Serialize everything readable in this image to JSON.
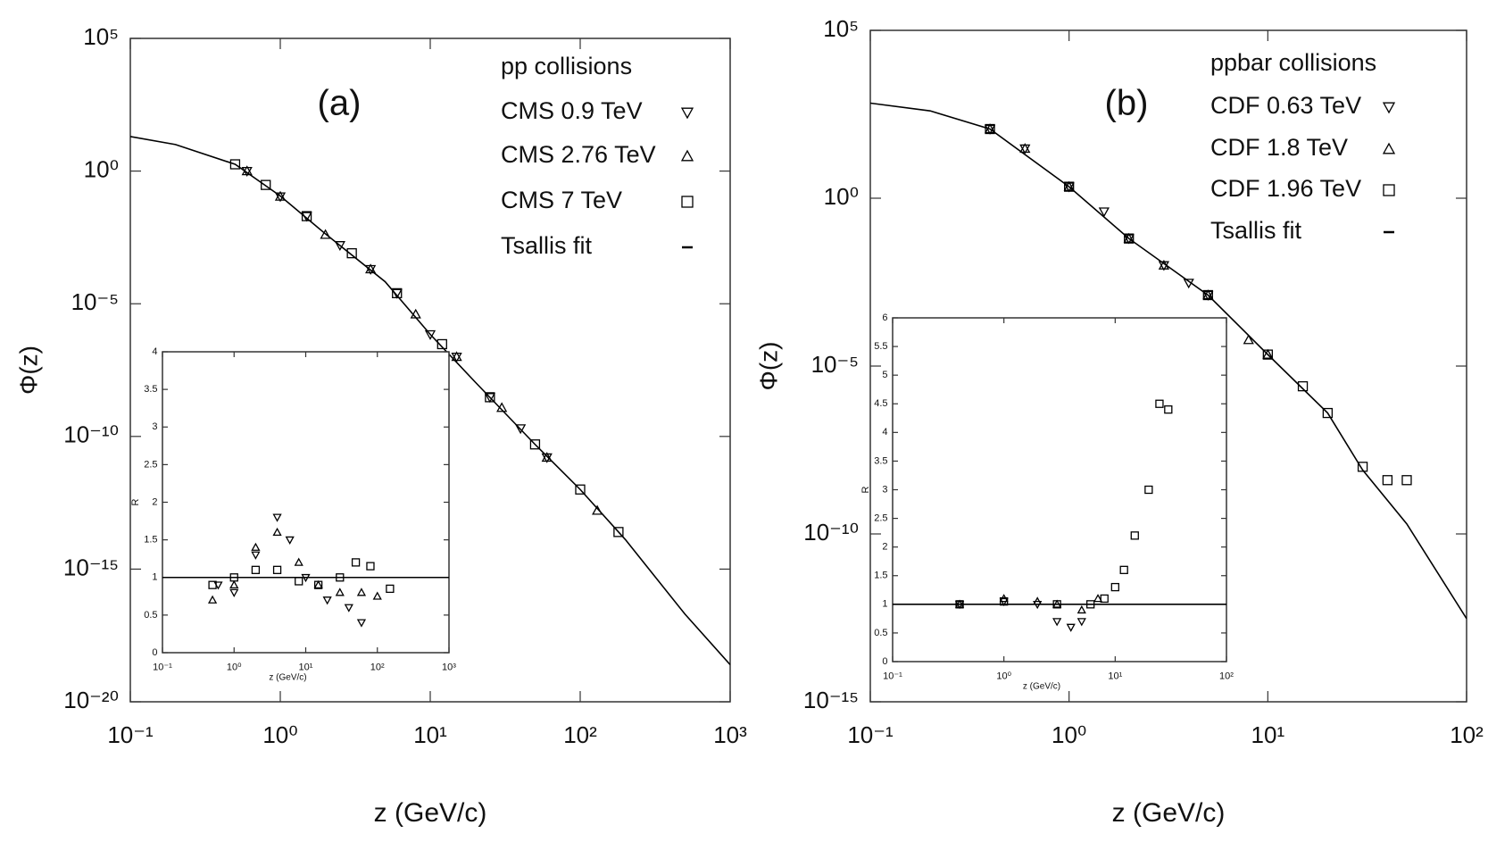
{
  "chart_data": [
    {
      "type": "scatter",
      "panel_label": "(a)",
      "legend_title": "pp collisions",
      "xlabel": "z (GeV/c)",
      "ylabel": "Φ(z)",
      "xscale": "log",
      "yscale": "log",
      "xlim": [
        0.1,
        1000
      ],
      "ylim": [
        1e-20,
        100000
      ],
      "xticks": [
        {
          "value": 0.1,
          "label": "10⁻¹"
        },
        {
          "value": 1,
          "label": "10⁰"
        },
        {
          "value": 10,
          "label": "10¹"
        },
        {
          "value": 100,
          "label": "10²"
        },
        {
          "value": 1000,
          "label": "10³"
        }
      ],
      "yticks": [
        {
          "value": 1e-20,
          "label": "10⁻²⁰"
        },
        {
          "value": 1e-15,
          "label": "10⁻¹⁵"
        },
        {
          "value": 1e-10,
          "label": "10⁻¹⁰"
        },
        {
          "value": 1e-05,
          "label": "10⁻⁵"
        },
        {
          "value": 1,
          "label": "10⁰"
        },
        {
          "value": 100000,
          "label": "10⁵"
        }
      ],
      "series": [
        {
          "name": "CMS 0.9 TeV",
          "marker": "triangle-down",
          "color": "#000000",
          "x": [
            0.6,
            1,
            1.5,
            2.5,
            4,
            6,
            10,
            15,
            25,
            40,
            60
          ],
          "values": [
            1,
            0.11,
            0.02,
            0.0016,
            0.0002,
            2.5e-05,
            7e-07,
            1e-07,
            3e-09,
            2e-10,
            1.6e-11
          ]
        },
        {
          "name": "CMS 2.76 TeV",
          "marker": "triangle-up",
          "color": "#000000",
          "x": [
            0.6,
            1,
            2,
            4,
            8,
            15,
            30,
            60,
            130
          ],
          "values": [
            1,
            0.11,
            0.004,
            0.0002,
            4e-06,
            1e-07,
            1.2e-09,
            1.6e-11,
            1.6e-13
          ]
        },
        {
          "name": "CMS 7 TeV",
          "marker": "square",
          "color": "#000000",
          "x": [
            0.5,
            0.8,
            1.5,
            3,
            6,
            12,
            25,
            50,
            100,
            180
          ],
          "values": [
            1.8,
            0.3,
            0.02,
            0.0008,
            2.5e-05,
            3e-07,
            3e-09,
            5e-11,
            1e-12,
            2.5e-14
          ]
        },
        {
          "name": "Tsallis fit",
          "marker": "line",
          "color": "#000000",
          "x": [
            0.1,
            0.2,
            0.5,
            1,
            2,
            5,
            10,
            20,
            50,
            100,
            200,
            500,
            1000
          ],
          "values": [
            20,
            10,
            1.8,
            0.115,
            0.0043,
            6.8e-05,
            7e-07,
            1.1e-08,
            5e-11,
            1e-12,
            1.3e-14,
            2e-17,
            2.5e-19
          ]
        }
      ]
    },
    {
      "type": "scatter",
      "xlabel": "z (GeV/c)",
      "ylabel": "R",
      "xscale": "log",
      "yscale": "linear",
      "xlim": [
        0.1,
        1000
      ],
      "ylim": [
        0,
        4
      ],
      "xticks": [
        {
          "value": 0.1,
          "label": "10⁻¹"
        },
        {
          "value": 1,
          "label": "10⁰"
        },
        {
          "value": 10,
          "label": "10¹"
        },
        {
          "value": 100,
          "label": "10²"
        },
        {
          "value": 1000,
          "label": "10³"
        }
      ],
      "yticks": [
        0,
        0.5,
        1,
        1.5,
        2,
        2.5,
        3,
        3.5,
        4
      ],
      "series": [
        {
          "marker": "triangle-down",
          "color": "#000000",
          "x": [
            0.6,
            1,
            2,
            4,
            6,
            10,
            20,
            40,
            60
          ],
          "values": [
            0.9,
            0.8,
            1.3,
            1.8,
            1.5,
            1.0,
            0.7,
            0.6,
            0.4
          ]
        },
        {
          "marker": "triangle-up",
          "color": "#000000",
          "x": [
            0.5,
            1,
            2,
            4,
            8,
            15,
            30,
            60,
            100
          ],
          "values": [
            0.7,
            0.9,
            1.4,
            1.6,
            1.2,
            0.9,
            0.8,
            0.8,
            0.75
          ]
        },
        {
          "marker": "square",
          "color": "#000000",
          "x": [
            0.5,
            1,
            2,
            4,
            8,
            15,
            30,
            50,
            80,
            150
          ],
          "values": [
            0.9,
            1.0,
            1.1,
            1.1,
            0.95,
            0.9,
            1.0,
            1.2,
            1.15,
            0.85
          ]
        },
        {
          "marker": "line",
          "color": "#000000",
          "x": [
            0.1,
            1000
          ],
          "values": [
            1,
            1
          ]
        }
      ]
    },
    {
      "type": "scatter",
      "panel_label": "(b)",
      "legend_title": "ppbar collisions",
      "xlabel": "z (GeV/c)",
      "ylabel": "Φ(z)",
      "xscale": "log",
      "yscale": "log",
      "xlim": [
        0.1,
        100
      ],
      "ylim": [
        1e-15,
        100000
      ],
      "xticks": [
        {
          "value": 0.1,
          "label": "10⁻¹"
        },
        {
          "value": 1,
          "label": "10⁰"
        },
        {
          "value": 10,
          "label": "10¹"
        },
        {
          "value": 100,
          "label": "10²"
        }
      ],
      "yticks": [
        {
          "value": 1e-15,
          "label": "10⁻¹⁵"
        },
        {
          "value": 1e-10,
          "label": "10⁻¹⁰"
        },
        {
          "value": 1e-05,
          "label": "10⁻⁵"
        },
        {
          "value": 1,
          "label": "10⁰"
        },
        {
          "value": 100000,
          "label": "10⁵"
        }
      ],
      "series": [
        {
          "name": "CDF 0.63 TeV",
          "marker": "triangle-down",
          "color": "#000000",
          "x": [
            0.4,
            0.6,
            1,
            1.5,
            2,
            3,
            4,
            5
          ],
          "values": [
            115,
            30,
            2.2,
            0.4,
            0.063,
            0.01,
            0.003,
            0.0013
          ]
        },
        {
          "name": "CDF 1.8 TeV",
          "marker": "triangle-up",
          "color": "#000000",
          "x": [
            0.4,
            0.6,
            1,
            2,
            3,
            5,
            8,
            10
          ],
          "values": [
            115,
            30,
            2.2,
            0.063,
            0.01,
            0.0013,
            6e-05,
            2.2e-05
          ]
        },
        {
          "name": "CDF 1.96 TeV",
          "marker": "square",
          "color": "#000000",
          "x": [
            0.4,
            1,
            2,
            5,
            10,
            15,
            20,
            30,
            40,
            50
          ],
          "values": [
            115,
            2.2,
            0.063,
            0.0013,
            2.2e-05,
            2.5e-06,
            4e-07,
            1e-08,
            4e-09,
            4e-09
          ]
        },
        {
          "name": "Tsallis fit",
          "marker": "line",
          "color": "#000000",
          "x": [
            0.1,
            0.2,
            0.4,
            1,
            2,
            5,
            10,
            20,
            30,
            50,
            100
          ],
          "values": [
            680,
            400,
            115,
            2.2,
            0.063,
            0.0013,
            2.2e-05,
            4e-07,
            8e-09,
            2e-10,
            3e-13
          ]
        }
      ]
    },
    {
      "type": "scatter",
      "xlabel": "z (GeV/c)",
      "ylabel": "R",
      "xscale": "log",
      "yscale": "linear",
      "xlim": [
        0.1,
        100
      ],
      "ylim": [
        0,
        6
      ],
      "xticks": [
        {
          "value": 0.1,
          "label": "10⁻¹"
        },
        {
          "value": 1,
          "label": "10⁰"
        },
        {
          "value": 10,
          "label": "10¹"
        },
        {
          "value": 100,
          "label": "10²"
        }
      ],
      "yticks": [
        0,
        0.5,
        1,
        1.5,
        2,
        2.5,
        3,
        3.5,
        4,
        4.5,
        5,
        5.5,
        6
      ],
      "series": [
        {
          "marker": "triangle-down",
          "color": "#000000",
          "x": [
            0.4,
            1,
            2,
            3,
            4,
            5
          ],
          "values": [
            1.0,
            1.05,
            1.0,
            0.7,
            0.6,
            0.7
          ]
        },
        {
          "marker": "triangle-up",
          "color": "#000000",
          "x": [
            0.4,
            1,
            2,
            3,
            5,
            7
          ],
          "values": [
            1.0,
            1.1,
            1.05,
            1.0,
            0.9,
            1.1
          ]
        },
        {
          "marker": "square",
          "color": "#000000",
          "x": [
            0.4,
            1,
            3,
            6,
            8,
            10,
            12,
            15,
            20,
            25,
            30
          ],
          "values": [
            1.0,
            1.05,
            1.0,
            1.0,
            1.1,
            1.3,
            1.6,
            2.2,
            3,
            4.5,
            4.4
          ]
        },
        {
          "marker": "line",
          "color": "#000000",
          "x": [
            0.1,
            100
          ],
          "values": [
            1,
            1
          ]
        }
      ]
    }
  ]
}
